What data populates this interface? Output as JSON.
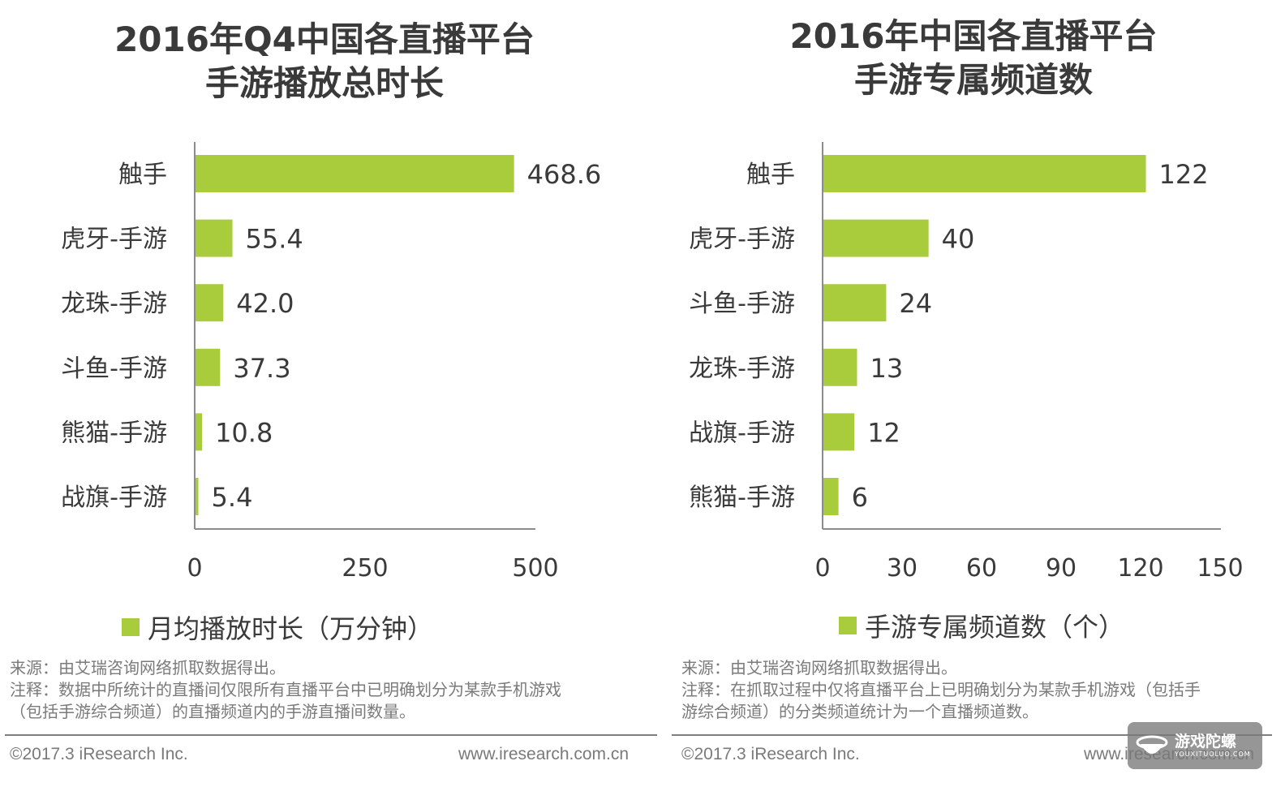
{
  "colors": {
    "bar": "#a8cc3c",
    "axis": "#8c8c8c",
    "text": "#3a3a3a",
    "note": "#7a7a7a"
  },
  "left": {
    "title_line1": "2016年Q4中国各直播平台",
    "title_line2": "手游播放总时长",
    "legend": "月均播放时长（万分钟）",
    "source": "来源：由艾瑞咨询网络抓取数据得出。",
    "note_line1": "注释：数据中所统计的直播间仅限所有直播平台中已明确划分为某款手机游戏",
    "note_line2": "（包括手游综合频道）的直播频道内的手游直播间数量。",
    "copyright": "©2017.3 iResearch Inc.",
    "website": "www.iresearch.com.cn"
  },
  "right": {
    "title_line1": "2016年中国各直播平台",
    "title_line2": "手游专属频道数",
    "legend": "手游专属频道数（个）",
    "source": "来源：由艾瑞咨询网络抓取数据得出。",
    "note_line1": "注释：在抓取过程中仅将直播平台上已明确划分为某款手机游戏（包括手",
    "note_line2": "游综合频道）的分类频道统计为一个直播频道数。",
    "copyright": "©2017.3 iResearch Inc.",
    "website": "www.iresearch.com.cn"
  },
  "watermark": {
    "main": "游戏陀螺",
    "sub": "YOUXITUOLUO.COM"
  },
  "chart_data": [
    {
      "type": "bar",
      "orientation": "horizontal",
      "title": "2016年Q4中国各直播平台 手游播放总时长",
      "categories": [
        "触手",
        "虎牙-手游",
        "龙珠-手游",
        "斗鱼-手游",
        "熊猫-手游",
        "战旗-手游"
      ],
      "series": [
        {
          "name": "月均播放时长（万分钟）",
          "values": [
            468.6,
            55.4,
            42.0,
            37.3,
            10.8,
            5.4
          ]
        }
      ],
      "value_labels": [
        "468.6",
        "55.4",
        "42.0",
        "37.3",
        "10.8",
        "5.4"
      ],
      "xlim": [
        0,
        500
      ],
      "xticks": [
        0,
        250,
        500
      ],
      "grid": false,
      "legend_position": "bottom"
    },
    {
      "type": "bar",
      "orientation": "horizontal",
      "title": "2016年中国各直播平台 手游专属频道数",
      "categories": [
        "触手",
        "虎牙-手游",
        "斗鱼-手游",
        "龙珠-手游",
        "战旗-手游",
        "熊猫-手游"
      ],
      "series": [
        {
          "name": "手游专属频道数（个）",
          "values": [
            122,
            40,
            24,
            13,
            12,
            6
          ]
        }
      ],
      "value_labels": [
        "122",
        "40",
        "24",
        "13",
        "12",
        "6"
      ],
      "xlim": [
        0,
        150
      ],
      "xticks": [
        0,
        30,
        60,
        90,
        120,
        150
      ],
      "grid": false,
      "legend_position": "bottom"
    }
  ]
}
